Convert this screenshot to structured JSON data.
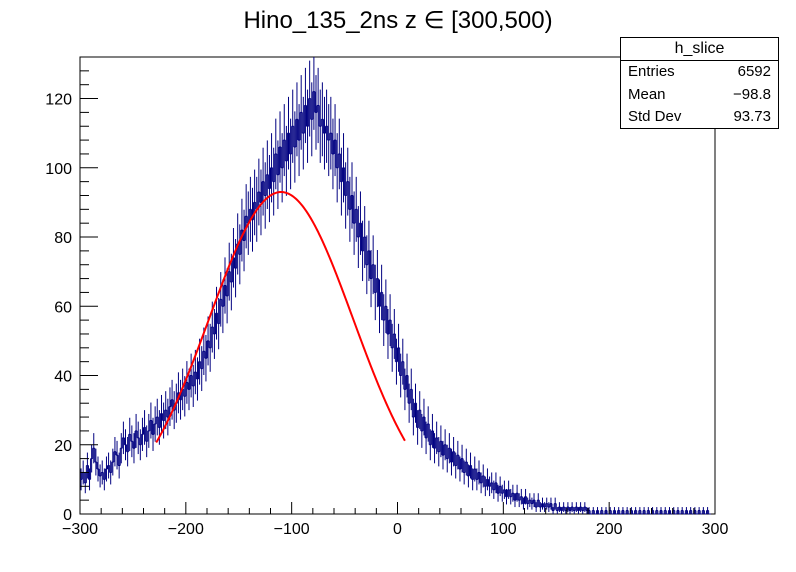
{
  "title": "Hino_135_2ns z  ∈ [300,500)",
  "stats": {
    "name": "h_slice",
    "rows": [
      {
        "label": "Entries",
        "value": "6592"
      },
      {
        "label": "Mean",
        "value": "−98.8"
      },
      {
        "label": "Std Dev",
        "value": "93.73"
      }
    ]
  },
  "colors": {
    "hist": "#000080",
    "fit": "#ff0000",
    "axis": "#000000"
  },
  "chart_data": {
    "type": "histogram",
    "title": "Hino_135_2ns z  ∈ [300,500)",
    "xlabel": "",
    "ylabel": "",
    "xlim": [
      -300,
      300
    ],
    "ylim": [
      0,
      132
    ],
    "x_ticks": [
      -300,
      -200,
      -100,
      0,
      100,
      200,
      300
    ],
    "x_tick_labels": [
      "−300",
      "−200",
      "−100",
      "0",
      "100",
      "200",
      "300"
    ],
    "y_ticks": [
      0,
      20,
      40,
      60,
      80,
      100,
      120
    ],
    "y_tick_labels": [
      "0",
      "20",
      "40",
      "60",
      "80",
      "100",
      "120"
    ],
    "bin_width": 2,
    "series": [
      {
        "name": "h_slice",
        "kind": "histogram_with_errors",
        "x_start": -300,
        "values": [
          10,
          12,
          9,
          14,
          10,
          16,
          19,
          15,
          13,
          11,
          12,
          10,
          13,
          14,
          12,
          15,
          18,
          17,
          14,
          19,
          22,
          20,
          18,
          23,
          21,
          19,
          24,
          22,
          20,
          23,
          25,
          21,
          24,
          27,
          23,
          26,
          28,
          25,
          29,
          27,
          30,
          28,
          31,
          33,
          30,
          32,
          35,
          33,
          36,
          34,
          38,
          36,
          40,
          37,
          41,
          39,
          44,
          42,
          47,
          45,
          50,
          48,
          54,
          52,
          58,
          55,
          62,
          60,
          66,
          63,
          70,
          67,
          74,
          71,
          78,
          75,
          82,
          79,
          86,
          84,
          88,
          85,
          90,
          88,
          93,
          90,
          96,
          92,
          98,
          94,
          100,
          96,
          104,
          98,
          106,
          100,
          108,
          102,
          110,
          104,
          112,
          106,
          114,
          108,
          116,
          110,
          118,
          112,
          120,
          114,
          122,
          116,
          118,
          112,
          114,
          110,
          112,
          108,
          110,
          104,
          108,
          100,
          104,
          96,
          100,
          92,
          96,
          88,
          92,
          84,
          88,
          80,
          84,
          76,
          80,
          72,
          76,
          68,
          72,
          64,
          68,
          60,
          64,
          56,
          60,
          52,
          56,
          48,
          52,
          44,
          48,
          40,
          44,
          36,
          40,
          32,
          36,
          28,
          32,
          25,
          30,
          24,
          28,
          22,
          26,
          20,
          24,
          19,
          22,
          18,
          21,
          17,
          20,
          16,
          19,
          15,
          18,
          14,
          17,
          13,
          16,
          12,
          15,
          11,
          14,
          10,
          13,
          10,
          12,
          9,
          11,
          8,
          10,
          8,
          9,
          7,
          9,
          6,
          8,
          6,
          7,
          5,
          7,
          5,
          6,
          4,
          6,
          4,
          5,
          3,
          5,
          3,
          4,
          3,
          4,
          2,
          4,
          2,
          3,
          2,
          3,
          2,
          3,
          1,
          3,
          1,
          2,
          1,
          2,
          1,
          2,
          1,
          2,
          1,
          2,
          1,
          2,
          1,
          2,
          1,
          1,
          0,
          1,
          0,
          1,
          0,
          1,
          0,
          1,
          0,
          1,
          0,
          1,
          0,
          1,
          0,
          1,
          0,
          1,
          0,
          1,
          0,
          1,
          0,
          1,
          0,
          1,
          0,
          1,
          0,
          1,
          0,
          1,
          0,
          1,
          0,
          1,
          0,
          1,
          0,
          1,
          0,
          1,
          0,
          1,
          0,
          1,
          0,
          1,
          0,
          1,
          0,
          1,
          0,
          1,
          0,
          1,
          0
        ]
      },
      {
        "name": "gaus fit",
        "kind": "function",
        "function": "gaussian",
        "amplitude": 93,
        "mean": -110,
        "sigma": 68,
        "x_range": [
          -228,
          7
        ]
      }
    ]
  }
}
